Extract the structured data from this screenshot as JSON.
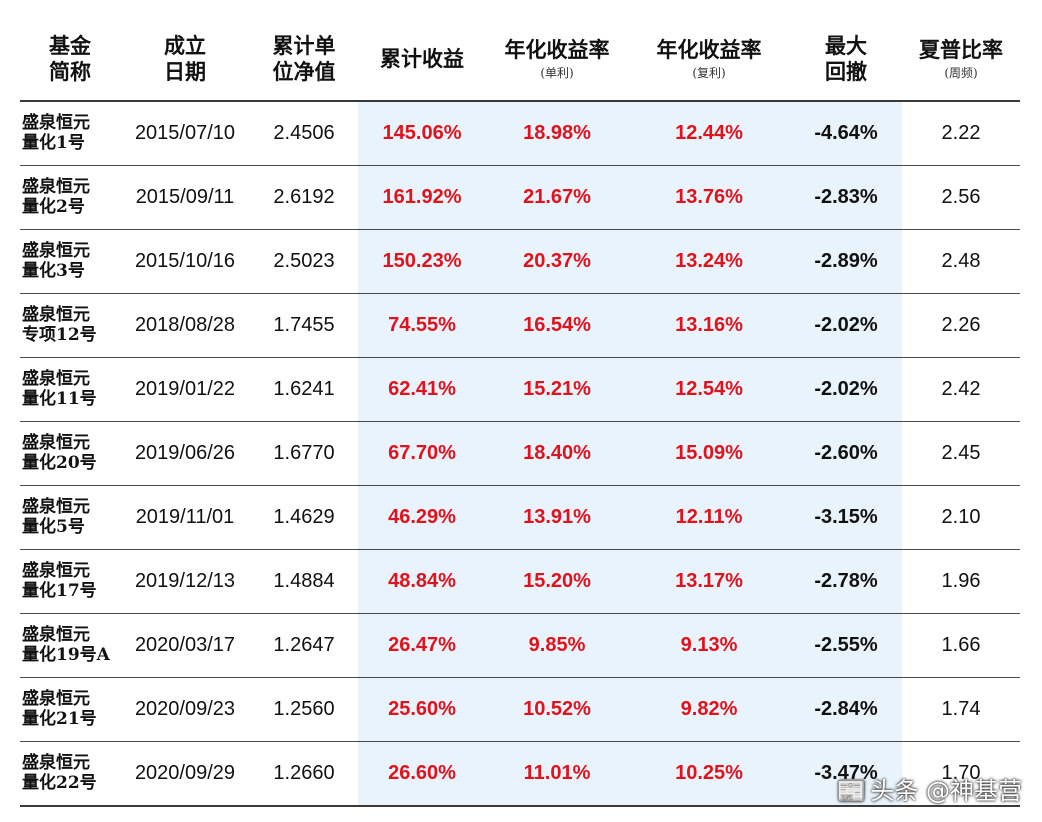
{
  "columns": [
    {
      "line1": "基金",
      "line2": "简称",
      "sub": ""
    },
    {
      "line1": "成立",
      "line2": "日期",
      "sub": ""
    },
    {
      "line1": "累计单",
      "line2": "位净值",
      "sub": ""
    },
    {
      "line1": "累计收益",
      "line2": "",
      "sub": ""
    },
    {
      "line1": "年化收益率",
      "line2": "",
      "sub": "(单利)"
    },
    {
      "line1": "年化收益率",
      "line2": "",
      "sub": "(复利)"
    },
    {
      "line1": "最大",
      "line2": "回撤",
      "sub": ""
    },
    {
      "line1": "夏普比率",
      "line2": "",
      "sub": "(周频)"
    }
  ],
  "rows": [
    {
      "name1": "盛泉恒元",
      "name2": "量化1号",
      "date": "2015/07/10",
      "nav": "2.4506",
      "cum": "145.06%",
      "simple": "18.98%",
      "compound": "12.44%",
      "mdd": "-4.64%",
      "sharpe": "2.22"
    },
    {
      "name1": "盛泉恒元",
      "name2": "量化2号",
      "date": "2015/09/11",
      "nav": "2.6192",
      "cum": "161.92%",
      "simple": "21.67%",
      "compound": "13.76%",
      "mdd": "-2.83%",
      "sharpe": "2.56"
    },
    {
      "name1": "盛泉恒元",
      "name2": "量化3号",
      "date": "2015/10/16",
      "nav": "2.5023",
      "cum": "150.23%",
      "simple": "20.37%",
      "compound": "13.24%",
      "mdd": "-2.89%",
      "sharpe": "2.48"
    },
    {
      "name1": "盛泉恒元",
      "name2": "专项12号",
      "date": "2018/08/28",
      "nav": "1.7455",
      "cum": "74.55%",
      "simple": "16.54%",
      "compound": "13.16%",
      "mdd": "-2.02%",
      "sharpe": "2.26"
    },
    {
      "name1": "盛泉恒元",
      "name2": "量化11号",
      "date": "2019/01/22",
      "nav": "1.6241",
      "cum": "62.41%",
      "simple": "15.21%",
      "compound": "12.54%",
      "mdd": "-2.02%",
      "sharpe": "2.42"
    },
    {
      "name1": "盛泉恒元",
      "name2": "量化20号",
      "date": "2019/06/26",
      "nav": "1.6770",
      "cum": "67.70%",
      "simple": "18.40%",
      "compound": "15.09%",
      "mdd": "-2.60%",
      "sharpe": "2.45"
    },
    {
      "name1": "盛泉恒元",
      "name2": "量化5号",
      "date": "2019/11/01",
      "nav": "1.4629",
      "cum": "46.29%",
      "simple": "13.91%",
      "compound": "12.11%",
      "mdd": "-3.15%",
      "sharpe": "2.10"
    },
    {
      "name1": "盛泉恒元",
      "name2": "量化17号",
      "date": "2019/12/13",
      "nav": "1.4884",
      "cum": "48.84%",
      "simple": "15.20%",
      "compound": "13.17%",
      "mdd": "-2.78%",
      "sharpe": "1.96"
    },
    {
      "name1": "盛泉恒元",
      "name2": "量化19号A",
      "date": "2020/03/17",
      "nav": "1.2647",
      "cum": "26.47%",
      "simple": "9.85%",
      "compound": "9.13%",
      "mdd": "-2.55%",
      "sharpe": "1.66"
    },
    {
      "name1": "盛泉恒元",
      "name2": "量化21号",
      "date": "2020/09/23",
      "nav": "1.2560",
      "cum": "25.60%",
      "simple": "10.52%",
      "compound": "9.82%",
      "mdd": "-2.84%",
      "sharpe": "1.74"
    },
    {
      "name1": "盛泉恒元",
      "name2": "量化22号",
      "date": "2020/09/29",
      "nav": "1.2660",
      "cum": "26.60%",
      "simple": "11.01%",
      "compound": "10.25%",
      "mdd": "-3.47%",
      "sharpe": "1.70"
    }
  ],
  "watermark": {
    "text": "头条 @神基营",
    "icon": "toutiao-logo-icon"
  },
  "colors": {
    "red": "#e1121b",
    "highlight_bg": "#e8f3fb",
    "rule": "#3a3a3a"
  }
}
